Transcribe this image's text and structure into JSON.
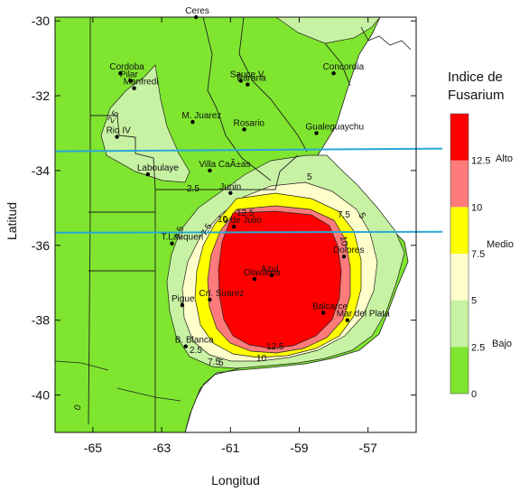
{
  "map": {
    "xlabel": "Longitud",
    "ylabel": "Latitud",
    "xlim": [
      -66.1,
      -55.6
    ],
    "ylim": [
      -41,
      -29.9
    ],
    "x_ticks": [
      {
        "value": -65,
        "label": "-65"
      },
      {
        "value": -63,
        "label": "-63"
      },
      {
        "value": -61,
        "label": "-61"
      },
      {
        "value": -59,
        "label": "-59"
      },
      {
        "value": -57,
        "label": "-57"
      }
    ],
    "y_ticks": [
      {
        "value": -30,
        "label": "-30"
      },
      {
        "value": -32,
        "label": "-32"
      },
      {
        "value": -34,
        "label": "-34"
      },
      {
        "value": -36,
        "label": "-36"
      },
      {
        "value": -38,
        "label": "-38"
      },
      {
        "value": -40,
        "label": "-40"
      }
    ],
    "cities": [
      {
        "name": "Ceres",
        "lon": -62.0,
        "lat": -29.9
      },
      {
        "name": "Cordoba",
        "lon": -64.2,
        "lat": -31.4
      },
      {
        "name": "Pilar",
        "lon": -63.9,
        "lat": -31.6
      },
      {
        "name": "Manfredi",
        "lon": -63.8,
        "lat": -31.8
      },
      {
        "name": "Parana",
        "lon": -60.5,
        "lat": -31.7
      },
      {
        "name": "Sauce V.",
        "lon": -60.7,
        "lat": -31.6
      },
      {
        "name": "Concordia",
        "lon": -58.0,
        "lat": -31.4
      },
      {
        "name": "Rio IV",
        "lon": -64.3,
        "lat": -33.1
      },
      {
        "name": "M. Juarez",
        "lon": -62.1,
        "lat": -32.7
      },
      {
        "name": "Rosario",
        "lon": -60.6,
        "lat": -32.9
      },
      {
        "name": "Gualeguaychu",
        "lon": -58.5,
        "lat": -33.0
      },
      {
        "name": "Laboulaye",
        "lon": -63.4,
        "lat": -34.1
      },
      {
        "name": "Villa CaÃ±as",
        "lon": -61.6,
        "lat": -34.0
      },
      {
        "name": "Junin",
        "lon": -61.0,
        "lat": -34.6
      },
      {
        "name": "9 de Julio",
        "lon": -60.9,
        "lat": -35.5
      },
      {
        "name": "T.Lauquen",
        "lon": -62.7,
        "lat": -35.95
      },
      {
        "name": "Dolores",
        "lon": -57.7,
        "lat": -36.3
      },
      {
        "name": "Olavarria",
        "lon": -60.3,
        "lat": -36.9
      },
      {
        "name": "Azul",
        "lon": -59.8,
        "lat": -36.8
      },
      {
        "name": "Pigue",
        "lon": -62.4,
        "lat": -37.6
      },
      {
        "name": "Crl. Suarez",
        "lon": -61.6,
        "lat": -37.45
      },
      {
        "name": "Balcarce",
        "lon": -58.3,
        "lat": -37.8
      },
      {
        "name": "Mar del Plata",
        "lon": -57.6,
        "lat": -38.0
      },
      {
        "name": "B. Blanca",
        "lon": -62.3,
        "lat": -38.7
      }
    ],
    "contour_labels": [
      "2.5",
      "2.5",
      "5",
      "7.5",
      "10",
      "12.5",
      "2.5",
      "7.5",
      "10",
      "5",
      "2.5",
      "7.5",
      "10",
      "12.5",
      "5",
      "0"
    ],
    "highlight_lines_lat": [
      -33.45,
      -35.65
    ],
    "highlight_color": "#29a8d6"
  },
  "legend": {
    "title_line1": "Indice de",
    "title_line2": "Fusarium",
    "levels": [
      {
        "from": 0,
        "to": 2.5,
        "color": "#7fe52f"
      },
      {
        "from": 2.5,
        "to": 5,
        "color": "#c8f2a3"
      },
      {
        "from": 5,
        "to": 7.5,
        "color": "#ffffcc"
      },
      {
        "from": 7.5,
        "to": 10,
        "color": "#ffff00"
      },
      {
        "from": 10,
        "to": 12.5,
        "color": "#ff7b7b"
      },
      {
        "from": 12.5,
        "to": 15,
        "color": "#ff0000"
      }
    ],
    "tick_labels": [
      "0",
      "2.5",
      "5",
      "7.5",
      "10",
      "12.5"
    ],
    "class_labels": [
      "Bajo",
      "Medio",
      "Alto"
    ]
  }
}
